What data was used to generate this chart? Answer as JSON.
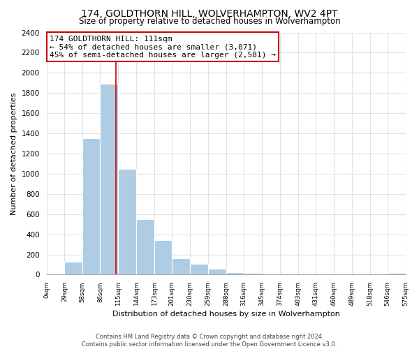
{
  "title": "174, GOLDTHORN HILL, WOLVERHAMPTON, WV2 4PT",
  "subtitle": "Size of property relative to detached houses in Wolverhampton",
  "xlabel": "Distribution of detached houses by size in Wolverhampton",
  "ylabel": "Number of detached properties",
  "bar_edges": [
    0,
    29,
    58,
    86,
    115,
    144,
    173,
    201,
    230,
    259,
    288,
    316,
    345,
    374,
    403,
    431,
    460,
    489,
    518,
    546,
    575
  ],
  "bar_heights": [
    0,
    125,
    1350,
    1890,
    1050,
    550,
    340,
    160,
    110,
    60,
    25,
    20,
    5,
    0,
    0,
    0,
    0,
    0,
    0,
    15
  ],
  "bar_color": "#aecde4",
  "property_line_x": 111,
  "property_line_color": "#cc0000",
  "annotation_line1": "174 GOLDTHORN HILL: 111sqm",
  "annotation_line2": "← 54% of detached houses are smaller (3,071)",
  "annotation_line3": "45% of semi-detached houses are larger (2,581) →",
  "annotation_box_color": "white",
  "annotation_box_edge_color": "#cc0000",
  "ylim": [
    0,
    2400
  ],
  "tick_labels": [
    "0sqm",
    "29sqm",
    "58sqm",
    "86sqm",
    "115sqm",
    "144sqm",
    "173sqm",
    "201sqm",
    "230sqm",
    "259sqm",
    "288sqm",
    "316sqm",
    "345sqm",
    "374sqm",
    "403sqm",
    "431sqm",
    "460sqm",
    "489sqm",
    "518sqm",
    "546sqm",
    "575sqm"
  ],
  "tick_positions": [
    0,
    29,
    58,
    86,
    115,
    144,
    173,
    201,
    230,
    259,
    288,
    316,
    345,
    374,
    403,
    431,
    460,
    489,
    518,
    546,
    575
  ],
  "yticks": [
    0,
    200,
    400,
    600,
    800,
    1000,
    1200,
    1400,
    1600,
    1800,
    2000,
    2200,
    2400
  ],
  "footer_text": "Contains HM Land Registry data © Crown copyright and database right 2024.\nContains public sector information licensed under the Open Government Licence v3.0.",
  "grid_color": "#d8e4f0"
}
